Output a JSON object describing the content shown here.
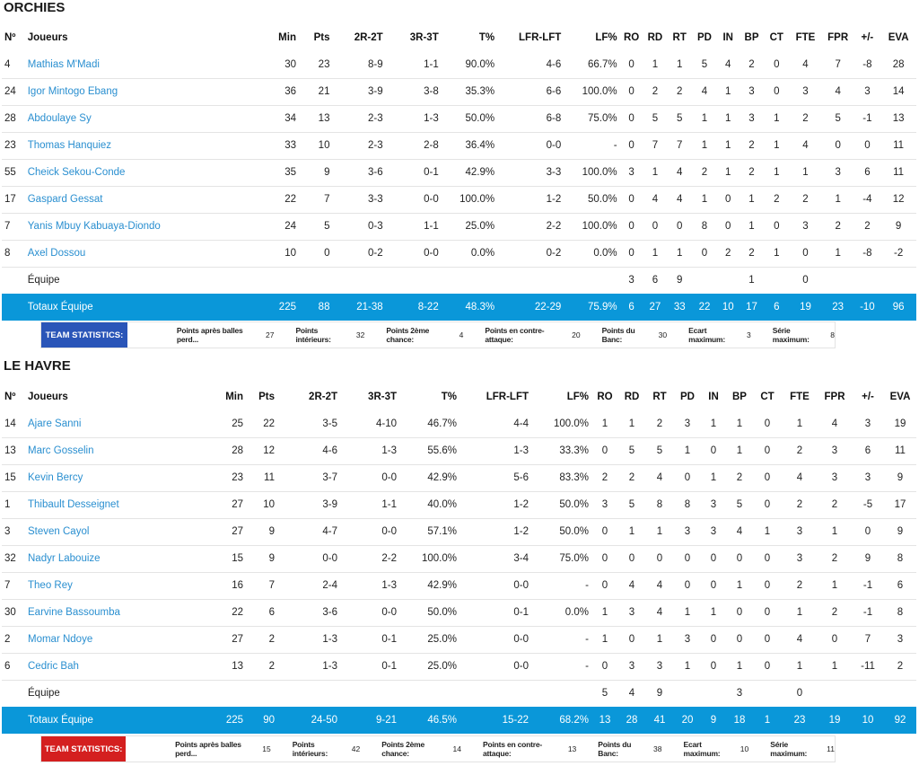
{
  "teams": [
    {
      "name": "ORCHIES",
      "badge_color": "#2a55b8",
      "headers": [
        "Nº",
        "Joueurs",
        "Min",
        "Pts",
        "2R-2T",
        "3R-3T",
        "T%",
        "LFR-LFT",
        "LF%",
        "RO",
        "RD",
        "RT",
        "PD",
        "IN",
        "BP",
        "CT",
        "FTE",
        "FPR",
        "+/-",
        "EVA"
      ],
      "players": [
        [
          "4",
          "Mathias M'Madi",
          "30",
          "23",
          "8-9",
          "1-1",
          "90.0%",
          "4-6",
          "66.7%",
          "0",
          "1",
          "1",
          "5",
          "4",
          "2",
          "0",
          "4",
          "7",
          "-8",
          "28"
        ],
        [
          "24",
          "Igor Mintogo Ebang",
          "36",
          "21",
          "3-9",
          "3-8",
          "35.3%",
          "6-6",
          "100.0%",
          "0",
          "2",
          "2",
          "4",
          "1",
          "3",
          "0",
          "3",
          "4",
          "3",
          "14"
        ],
        [
          "28",
          "Abdoulaye Sy",
          "34",
          "13",
          "2-3",
          "1-3",
          "50.0%",
          "6-8",
          "75.0%",
          "0",
          "5",
          "5",
          "1",
          "1",
          "3",
          "1",
          "2",
          "5",
          "-1",
          "13"
        ],
        [
          "23",
          "Thomas Hanquiez",
          "33",
          "10",
          "2-3",
          "2-8",
          "36.4%",
          "0-0",
          "-",
          "0",
          "7",
          "7",
          "1",
          "1",
          "2",
          "1",
          "4",
          "0",
          "0",
          "11"
        ],
        [
          "55",
          "Cheick Sekou-Conde",
          "35",
          "9",
          "3-6",
          "0-1",
          "42.9%",
          "3-3",
          "100.0%",
          "3",
          "1",
          "4",
          "2",
          "1",
          "2",
          "1",
          "1",
          "3",
          "6",
          "11"
        ],
        [
          "17",
          "Gaspard Gessat",
          "22",
          "7",
          "3-3",
          "0-0",
          "100.0%",
          "1-2",
          "50.0%",
          "0",
          "4",
          "4",
          "1",
          "0",
          "1",
          "2",
          "2",
          "1",
          "-4",
          "12"
        ],
        [
          "7",
          "Yanis Mbuy Kabuaya-Diondo",
          "24",
          "5",
          "0-3",
          "1-1",
          "25.0%",
          "2-2",
          "100.0%",
          "0",
          "0",
          "0",
          "8",
          "0",
          "1",
          "0",
          "3",
          "2",
          "2",
          "9"
        ],
        [
          "8",
          "Axel Dossou",
          "10",
          "0",
          "0-2",
          "0-0",
          "0.0%",
          "0-2",
          "0.0%",
          "0",
          "1",
          "1",
          "0",
          "2",
          "2",
          "1",
          "0",
          "1",
          "-8",
          "-2"
        ]
      ],
      "equipe": [
        "",
        "Équipe",
        "",
        "",
        "",
        "",
        "",
        "",
        "",
        "3",
        "6",
        "9",
        "",
        "",
        "1",
        "",
        "0",
        "",
        "",
        ""
      ],
      "totals": [
        "",
        "Totaux Équipe",
        "225",
        "88",
        "21-38",
        "8-22",
        "48.3%",
        "22-29",
        "75.9%",
        "6",
        "27",
        "33",
        "22",
        "10",
        "17",
        "6",
        "19",
        "23",
        "-10",
        "96"
      ],
      "stats_badge": "TEAM STATISTICS:",
      "stats": [
        {
          "label": "Points après balles perd...",
          "value": "27"
        },
        {
          "label": "Points intérieurs:",
          "value": "32"
        },
        {
          "label": "Points 2ème chance:",
          "value": "4"
        },
        {
          "label": "Points en contre-attaque:",
          "value": "20"
        },
        {
          "label": "Points du Banc:",
          "value": "30"
        },
        {
          "label": "Ecart maximum:",
          "value": "3"
        },
        {
          "label": "Série maximum:",
          "value": "8"
        }
      ]
    },
    {
      "name": "LE HAVRE",
      "badge_color": "#d41f1f",
      "headers": [
        "Nº",
        "Joueurs",
        "Min",
        "Pts",
        "2R-2T",
        "3R-3T",
        "T%",
        "LFR-LFT",
        "LF%",
        "RO",
        "RD",
        "RT",
        "PD",
        "IN",
        "BP",
        "CT",
        "FTE",
        "FPR",
        "+/-",
        "EVA"
      ],
      "players": [
        [
          "14",
          "Ajare Sanni",
          "25",
          "22",
          "3-5",
          "4-10",
          "46.7%",
          "4-4",
          "100.0%",
          "1",
          "1",
          "2",
          "3",
          "1",
          "1",
          "0",
          "1",
          "4",
          "3",
          "19"
        ],
        [
          "13",
          "Marc Gosselin",
          "28",
          "12",
          "4-6",
          "1-3",
          "55.6%",
          "1-3",
          "33.3%",
          "0",
          "5",
          "5",
          "1",
          "0",
          "1",
          "0",
          "2",
          "3",
          "6",
          "11"
        ],
        [
          "15",
          "Kevin Bercy",
          "23",
          "11",
          "3-7",
          "0-0",
          "42.9%",
          "5-6",
          "83.3%",
          "2",
          "2",
          "4",
          "0",
          "1",
          "2",
          "0",
          "4",
          "3",
          "3",
          "9"
        ],
        [
          "1",
          "Thibault Desseignet",
          "27",
          "10",
          "3-9",
          "1-1",
          "40.0%",
          "1-2",
          "50.0%",
          "3",
          "5",
          "8",
          "8",
          "3",
          "5",
          "0",
          "2",
          "2",
          "-5",
          "17"
        ],
        [
          "3",
          "Steven Cayol",
          "27",
          "9",
          "4-7",
          "0-0",
          "57.1%",
          "1-2",
          "50.0%",
          "0",
          "1",
          "1",
          "3",
          "3",
          "4",
          "1",
          "3",
          "1",
          "0",
          "9"
        ],
        [
          "32",
          "Nadyr Labouize",
          "15",
          "9",
          "0-0",
          "2-2",
          "100.0%",
          "3-4",
          "75.0%",
          "0",
          "0",
          "0",
          "0",
          "0",
          "0",
          "0",
          "3",
          "2",
          "9",
          "8"
        ],
        [
          "7",
          "Theo Rey",
          "16",
          "7",
          "2-4",
          "1-3",
          "42.9%",
          "0-0",
          "-",
          "0",
          "4",
          "4",
          "0",
          "0",
          "1",
          "0",
          "2",
          "1",
          "-1",
          "6"
        ],
        [
          "30",
          "Earvine Bassoumba",
          "22",
          "6",
          "3-6",
          "0-0",
          "50.0%",
          "0-1",
          "0.0%",
          "1",
          "3",
          "4",
          "1",
          "1",
          "0",
          "0",
          "1",
          "2",
          "-1",
          "8"
        ],
        [
          "2",
          "Momar Ndoye",
          "27",
          "2",
          "1-3",
          "0-1",
          "25.0%",
          "0-0",
          "-",
          "1",
          "0",
          "1",
          "3",
          "0",
          "0",
          "0",
          "4",
          "0",
          "7",
          "3"
        ],
        [
          "6",
          "Cedric Bah",
          "13",
          "2",
          "1-3",
          "0-1",
          "25.0%",
          "0-0",
          "-",
          "0",
          "3",
          "3",
          "1",
          "0",
          "1",
          "0",
          "1",
          "1",
          "-11",
          "2"
        ]
      ],
      "equipe": [
        "",
        "Équipe",
        "",
        "",
        "",
        "",
        "",
        "",
        "",
        "5",
        "4",
        "9",
        "",
        "",
        "3",
        "",
        "0",
        "",
        "",
        ""
      ],
      "totals": [
        "",
        "Totaux Équipe",
        "225",
        "90",
        "24-50",
        "9-21",
        "46.5%",
        "15-22",
        "68.2%",
        "13",
        "28",
        "41",
        "20",
        "9",
        "18",
        "1",
        "23",
        "19",
        "10",
        "92"
      ],
      "stats_badge": "TEAM STATISTICS:",
      "stats": [
        {
          "label": "Points après balles perd...",
          "value": "15"
        },
        {
          "label": "Points intérieurs:",
          "value": "42"
        },
        {
          "label": "Points 2ème chance:",
          "value": "14"
        },
        {
          "label": "Points en contre-attaque:",
          "value": "13"
        },
        {
          "label": "Points du Banc:",
          "value": "38"
        },
        {
          "label": "Ecart maximum:",
          "value": "10"
        },
        {
          "label": "Série maximum:",
          "value": "11"
        }
      ]
    }
  ]
}
